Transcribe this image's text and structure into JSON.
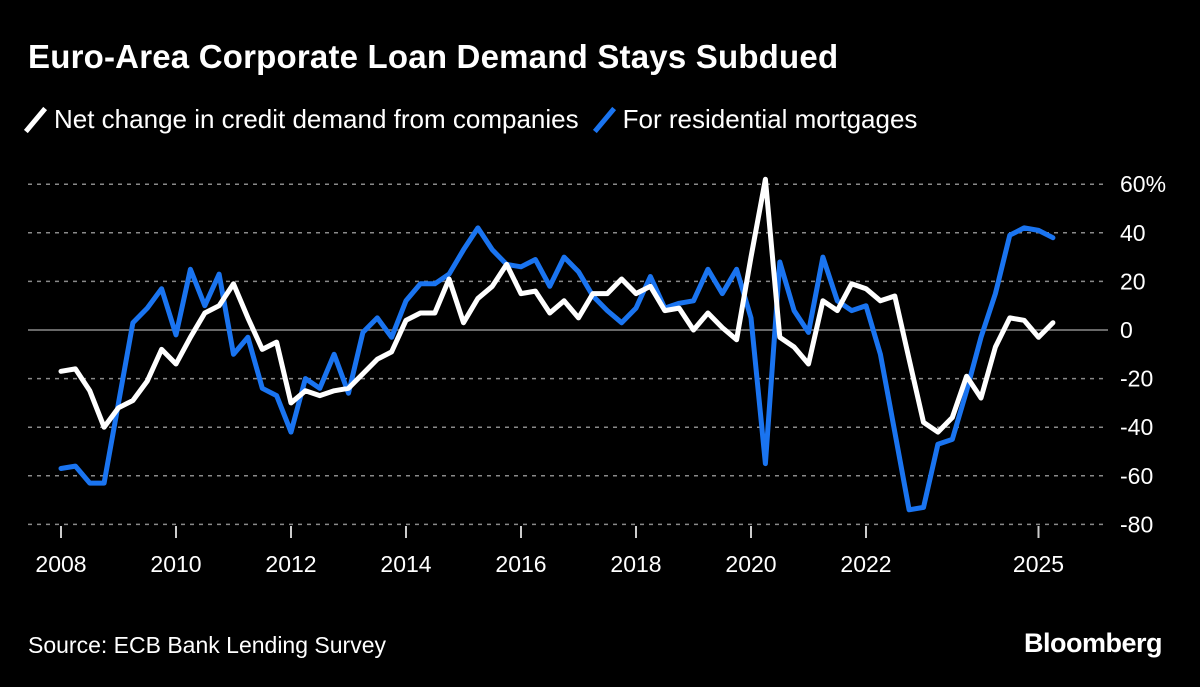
{
  "chart_data": {
    "type": "line",
    "title": "Euro-Area Corporate Loan Demand Stays Subdued",
    "source": "Source: ECB Bank Lending Survey",
    "logo": "Bloomberg",
    "x_start": "2008 Q1",
    "x_frequency": "quarterly",
    "x_ticks": [
      "2008",
      "2010",
      "2012",
      "2014",
      "2016",
      "2018",
      "2020",
      "2022",
      "2025"
    ],
    "x_tick_years": [
      2008,
      2010,
      2012,
      2014,
      2016,
      2018,
      2020,
      2022,
      2025
    ],
    "y_ticks": [
      60,
      40,
      20,
      0,
      -20,
      -40,
      -60,
      -80
    ],
    "y_tick_labels": [
      "60%",
      "40",
      "20",
      "0",
      "-20",
      "-40",
      "-60",
      "-80"
    ],
    "ylim": [
      -80,
      60
    ],
    "grid": true,
    "legend_position": "top-left",
    "series": [
      {
        "name": "Net change in credit demand from companies",
        "color": "#ffffff",
        "values": [
          -17,
          -16,
          -25,
          -40,
          -32,
          -29,
          -21,
          -8,
          -14,
          -3,
          7,
          10,
          19,
          5,
          -8,
          -5,
          -30,
          -25,
          -27,
          -25,
          -24,
          -18,
          -12,
          -9,
          4,
          7,
          7,
          21,
          3,
          13,
          18,
          27,
          15,
          16,
          7,
          12,
          5,
          15,
          15,
          21,
          15,
          18,
          8,
          9,
          0,
          7,
          1,
          -4,
          30,
          62,
          -3,
          -7,
          -14,
          12,
          8,
          19,
          17,
          12,
          14,
          -12,
          -38,
          -42,
          -36,
          -19,
          -28,
          -7,
          5,
          4,
          -3,
          3
        ]
      },
      {
        "name": "For residential mortgages",
        "color": "#1a74f0",
        "values": [
          -57,
          -56,
          -63,
          -63,
          -30,
          3,
          9,
          17,
          -2,
          25,
          10,
          23,
          -10,
          -3,
          -24,
          -27,
          -42,
          -20,
          -24,
          -10,
          -26,
          -1,
          5,
          -3,
          12,
          19,
          19,
          23,
          33,
          42,
          33,
          27,
          26,
          29,
          18,
          30,
          24,
          14,
          8,
          3,
          9,
          22,
          9,
          11,
          12,
          25,
          15,
          25,
          5,
          -55,
          28,
          8,
          -1,
          30,
          12,
          8,
          10,
          -10,
          -42,
          -74,
          -73,
          -47,
          -45,
          -25,
          -3,
          15,
          39,
          42,
          41,
          38
        ]
      }
    ]
  }
}
